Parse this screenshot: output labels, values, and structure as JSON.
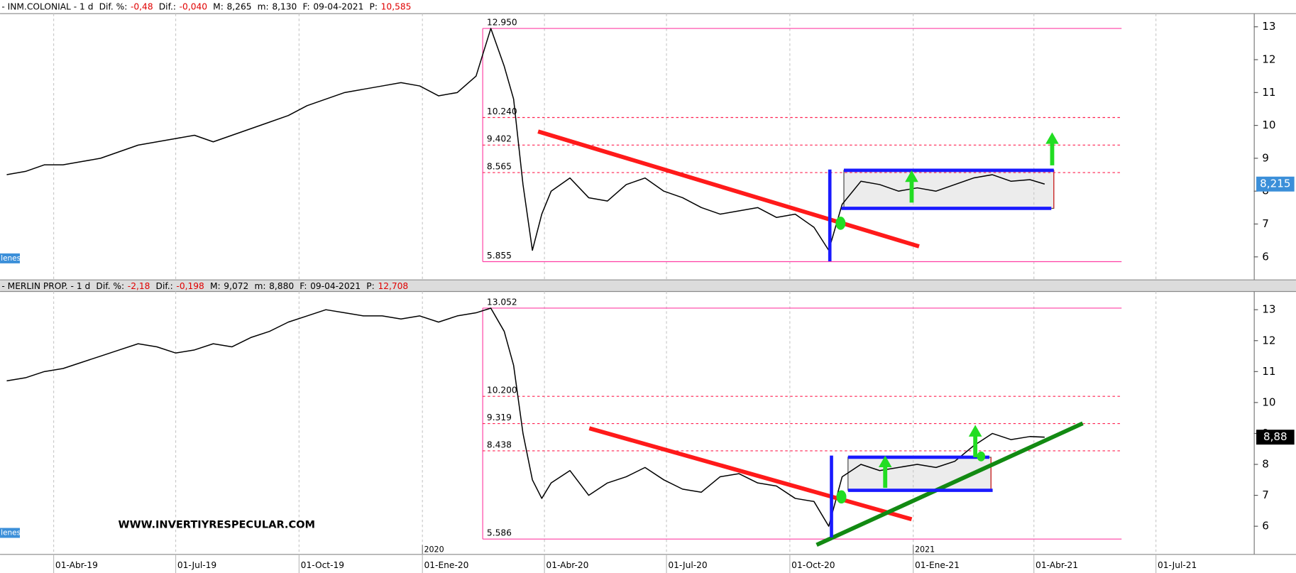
{
  "chart_data": [
    {
      "type": "line",
      "header": "- INM.COLONIAL - 1 d",
      "stats": [
        {
          "label": "Dif. %:",
          "text": "-0,48",
          "color": "#e00000"
        },
        {
          "label": "Dif.:",
          "text": "-0,040",
          "color": "#e00000"
        },
        {
          "label": "M:",
          "text": "8,265",
          "color": "#000000"
        },
        {
          "label": "m:",
          "text": "8,130",
          "color": "#000000"
        },
        {
          "label": "F:",
          "text": "09-04-2021",
          "color": "#000000"
        },
        {
          "label": "P:",
          "text": "10,585",
          "color": "#e00000"
        }
      ],
      "x": [
        "2019-02-25",
        "2019-03-11",
        "2019-03-25",
        "2019-04-08",
        "2019-04-22",
        "2019-05-06",
        "2019-05-20",
        "2019-06-03",
        "2019-06-17",
        "2019-07-01",
        "2019-07-15",
        "2019-07-29",
        "2019-08-12",
        "2019-08-26",
        "2019-09-09",
        "2019-09-23",
        "2019-10-07",
        "2019-10-21",
        "2019-11-04",
        "2019-11-18",
        "2019-12-02",
        "2019-12-16",
        "2019-12-30",
        "2020-01-13",
        "2020-01-27",
        "2020-02-10",
        "2020-02-21",
        "2020-03-02",
        "2020-03-09",
        "2020-03-16",
        "2020-03-23",
        "2020-03-30",
        "2020-04-06",
        "2020-04-20",
        "2020-05-04",
        "2020-05-18",
        "2020-06-01",
        "2020-06-15",
        "2020-06-29",
        "2020-07-13",
        "2020-07-27",
        "2020-08-10",
        "2020-08-24",
        "2020-09-07",
        "2020-09-21",
        "2020-10-05",
        "2020-10-19",
        "2020-10-30",
        "2020-11-09",
        "2020-11-23",
        "2020-12-07",
        "2020-12-21",
        "2021-01-04",
        "2021-01-18",
        "2021-02-01",
        "2021-02-15",
        "2021-03-01",
        "2021-03-15",
        "2021-03-29",
        "2021-04-09"
      ],
      "series": [
        {
          "color": "#000000",
          "values": [
            8.5,
            8.6,
            8.8,
            8.8,
            8.9,
            9.0,
            9.2,
            9.4,
            9.5,
            9.6,
            9.7,
            9.5,
            9.7,
            9.9,
            10.1,
            10.3,
            10.6,
            10.8,
            11.0,
            11.1,
            11.2,
            11.3,
            11.2,
            10.9,
            11.0,
            11.5,
            12.95,
            11.8,
            10.8,
            8.2,
            6.2,
            7.3,
            8.0,
            8.4,
            7.8,
            7.7,
            8.2,
            8.4,
            8.0,
            7.8,
            7.5,
            7.3,
            7.4,
            7.5,
            7.2,
            7.3,
            6.9,
            6.2,
            7.6,
            8.3,
            8.2,
            8.0,
            8.1,
            8.0,
            8.2,
            8.4,
            8.5,
            8.3,
            8.35,
            8.215
          ]
        }
      ],
      "xlim": [
        "2019-02-20",
        "2021-09-12"
      ],
      "xticks": [
        "2019-04-01",
        "2019-07-01",
        "2019-10-01",
        "2020-01-01",
        "2020-04-01",
        "2020-07-01",
        "2020-10-01",
        "2021-01-01",
        "2021-04-01",
        "2021-07-01"
      ],
      "ylim": [
        5.3,
        13.4
      ],
      "yticks": [
        6,
        7,
        8,
        9,
        10,
        11,
        12,
        13
      ],
      "levels": [
        {
          "value": 12.95,
          "label": "12.950",
          "style": "solid"
        },
        {
          "value": 10.24,
          "label": "10.240",
          "style": "dashed"
        },
        {
          "value": 9.402,
          "label": "9.402",
          "style": "dashed"
        },
        {
          "value": 8.565,
          "label": "8.565",
          "style": "dashed"
        },
        {
          "value": 5.855,
          "label": "5.855",
          "style": "solid"
        }
      ],
      "last_price": {
        "value": 8.215,
        "label": "8,215",
        "color": "#3b8fd9"
      },
      "volume_tag": "lenes"
    },
    {
      "type": "line",
      "header": "- MERLIN PROP. - 1 d",
      "stats": [
        {
          "label": "Dif. %:",
          "text": "-2,18",
          "color": "#e00000"
        },
        {
          "label": "Dif.:",
          "text": "-0,198",
          "color": "#e00000"
        },
        {
          "label": "M:",
          "text": "9,072",
          "color": "#000000"
        },
        {
          "label": "m:",
          "text": "8,880",
          "color": "#000000"
        },
        {
          "label": "F:",
          "text": "09-04-2021",
          "color": "#000000"
        },
        {
          "label": "P:",
          "text": "12,708",
          "color": "#e00000"
        }
      ],
      "x": [
        "2019-02-25",
        "2019-03-11",
        "2019-03-25",
        "2019-04-08",
        "2019-04-22",
        "2019-05-06",
        "2019-05-20",
        "2019-06-03",
        "2019-06-17",
        "2019-07-01",
        "2019-07-15",
        "2019-07-29",
        "2019-08-12",
        "2019-08-26",
        "2019-09-09",
        "2019-09-23",
        "2019-10-07",
        "2019-10-21",
        "2019-11-04",
        "2019-11-18",
        "2019-12-02",
        "2019-12-16",
        "2019-12-30",
        "2020-01-13",
        "2020-01-27",
        "2020-02-10",
        "2020-02-21",
        "2020-03-02",
        "2020-03-09",
        "2020-03-16",
        "2020-03-23",
        "2020-03-30",
        "2020-04-06",
        "2020-04-20",
        "2020-05-04",
        "2020-05-18",
        "2020-06-01",
        "2020-06-15",
        "2020-06-29",
        "2020-07-13",
        "2020-07-27",
        "2020-08-10",
        "2020-08-24",
        "2020-09-07",
        "2020-09-21",
        "2020-10-05",
        "2020-10-19",
        "2020-10-30",
        "2020-11-09",
        "2020-11-23",
        "2020-12-07",
        "2020-12-21",
        "2021-01-04",
        "2021-01-18",
        "2021-02-01",
        "2021-02-15",
        "2021-03-01",
        "2021-03-15",
        "2021-03-29",
        "2021-04-09"
      ],
      "series": [
        {
          "color": "#000000",
          "values": [
            10.7,
            10.8,
            11.0,
            11.1,
            11.3,
            11.5,
            11.7,
            11.9,
            11.8,
            11.6,
            11.7,
            11.9,
            11.8,
            12.1,
            12.3,
            12.6,
            12.8,
            13.0,
            12.9,
            12.8,
            12.8,
            12.7,
            12.8,
            12.6,
            12.8,
            12.9,
            13.05,
            12.3,
            11.2,
            9.0,
            7.5,
            6.9,
            7.4,
            7.8,
            7.0,
            7.4,
            7.6,
            7.9,
            7.5,
            7.2,
            7.1,
            7.6,
            7.7,
            7.4,
            7.3,
            6.9,
            6.8,
            6.0,
            7.6,
            8.0,
            7.8,
            7.9,
            8.0,
            7.9,
            8.1,
            8.6,
            9.0,
            8.8,
            8.9,
            8.88
          ]
        }
      ],
      "xlim": [
        "2019-02-20",
        "2021-09-12"
      ],
      "xticks": [
        {
          "value": "2019-04-01",
          "label": "01-Abr-19"
        },
        {
          "value": "2019-07-01",
          "label": "01-Jul-19"
        },
        {
          "value": "2019-10-01",
          "label": "01-Oct-19"
        },
        {
          "value": "2020-01-01",
          "label": "01-Ene-20"
        },
        {
          "value": "2020-04-01",
          "label": "01-Abr-20"
        },
        {
          "value": "2020-07-01",
          "label": "01-Jul-20"
        },
        {
          "value": "2020-10-01",
          "label": "01-Oct-20"
        },
        {
          "value": "2021-01-01",
          "label": "01-Ene-21"
        },
        {
          "value": "2021-04-01",
          "label": "01-Abr-21"
        },
        {
          "value": "2021-07-01",
          "label": "01-Jul-21"
        }
      ],
      "year_labels": [
        {
          "value": "2020-01-01",
          "label": "2020"
        },
        {
          "value": "2021-01-01",
          "label": "2021"
        }
      ],
      "ylim": [
        5.09,
        13.59
      ],
      "yticks": [
        6,
        7,
        8,
        9,
        10,
        11,
        12,
        13
      ],
      "levels": [
        {
          "value": 13.052,
          "label": "13.052",
          "style": "solid"
        },
        {
          "value": 10.2,
          "label": "10.200",
          "style": "dashed"
        },
        {
          "value": 9.319,
          "label": "9.319",
          "style": "dashed"
        },
        {
          "value": 8.438,
          "label": "8.438",
          "style": "dashed"
        },
        {
          "value": 5.586,
          "label": "5.586",
          "style": "solid"
        }
      ],
      "last_price": {
        "value": 8.88,
        "label": "8,88",
        "color": "#000000"
      },
      "volume_tag": "lenes",
      "watermark": "WWW.INVERTIYRESPECULAR.COM"
    }
  ]
}
